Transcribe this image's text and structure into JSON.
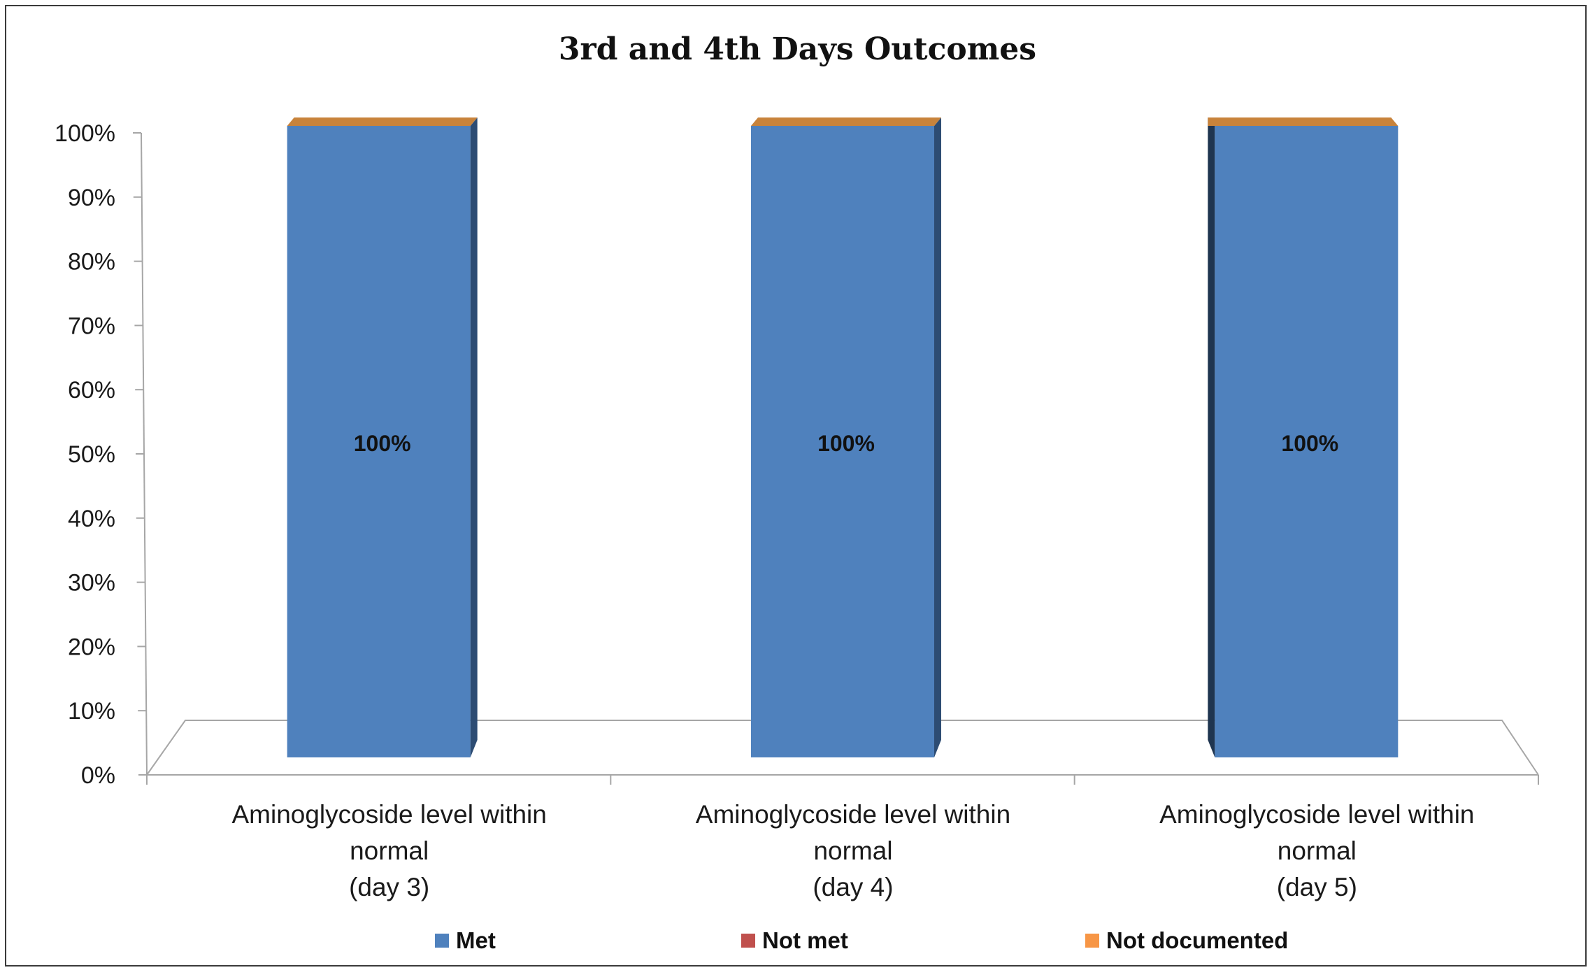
{
  "chart_data": {
    "type": "bar",
    "stacked": true,
    "style": "3d",
    "title": "3rd and 4th Days Outcomes",
    "categories": [
      [
        "Aminoglycoside level within",
        "normal",
        "(day 3)"
      ],
      [
        "Aminoglycoside level within",
        "normal",
        "(day 4)"
      ],
      [
        "Aminoglycoside level within",
        "normal",
        "(day 5)"
      ]
    ],
    "series": [
      {
        "name": "Met",
        "values": [
          100,
          100,
          100
        ],
        "color": "#4f81bd"
      },
      {
        "name": "Not met",
        "values": [
          0,
          0,
          0
        ],
        "color": "#c0504d"
      },
      {
        "name": "Not documented",
        "values": [
          0,
          0,
          0
        ],
        "color": "#f79646"
      }
    ],
    "data_labels": [
      "100%",
      "100%",
      "100%"
    ],
    "ylim": [
      0,
      100
    ],
    "yticks": [
      "0%",
      "10%",
      "20%",
      "30%",
      "40%",
      "50%",
      "60%",
      "70%",
      "80%",
      "90%",
      "100%"
    ],
    "xlabel": "",
    "ylabel": "",
    "grid": false,
    "legend_position": "bottom"
  }
}
